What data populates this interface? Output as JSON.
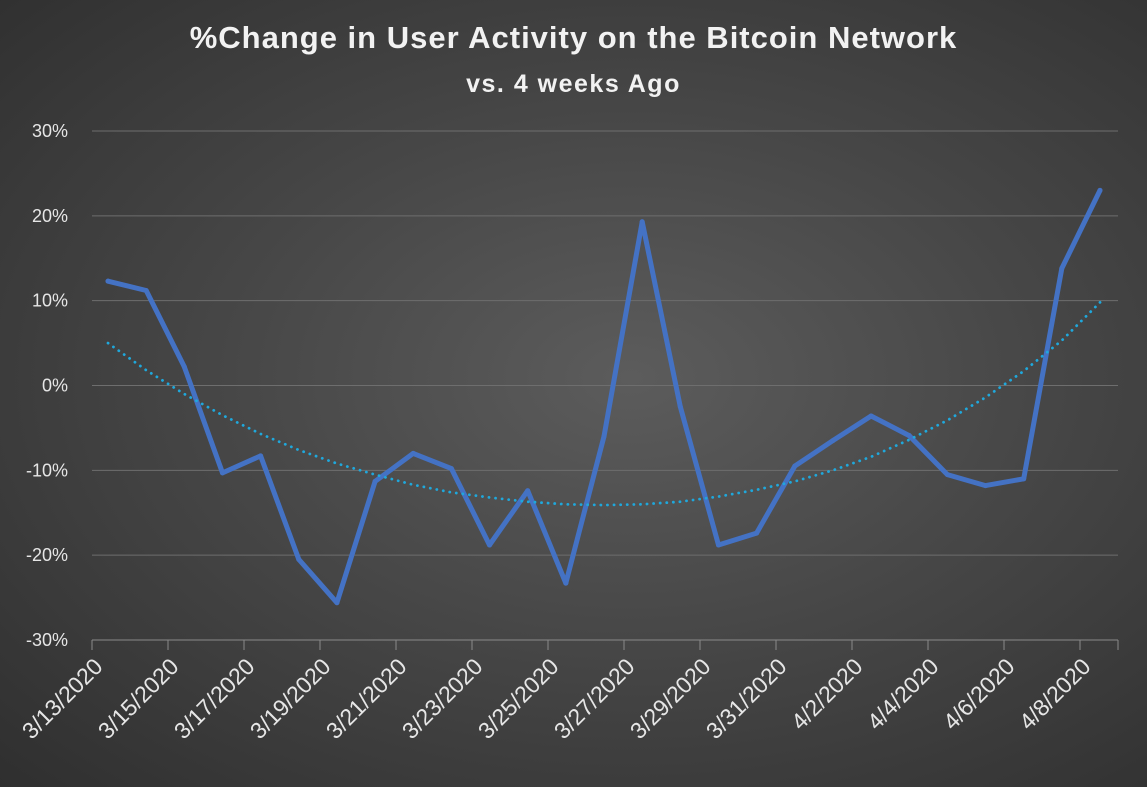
{
  "chart_data": {
    "type": "line",
    "title": "%Change in User Activity on the Bitcoin Network",
    "subtitle": "vs. 4 weeks Ago",
    "xlabel": "",
    "ylabel": "",
    "ylim": [
      -0.3,
      0.3
    ],
    "y_ticks": [
      0.3,
      0.2,
      0.1,
      0.0,
      -0.1,
      -0.2,
      -0.3
    ],
    "y_tick_labels": [
      "30%",
      "20%",
      "10%",
      "0%",
      "-10%",
      "-20%",
      "-30%"
    ],
    "x_tick_labels": [
      "3/13/2020",
      "3/15/2020",
      "3/17/2020",
      "3/19/2020",
      "3/21/2020",
      "3/23/2020",
      "3/25/2020",
      "3/27/2020",
      "3/29/2020",
      "3/31/2020",
      "4/2/2020",
      "4/4/2020",
      "4/6/2020",
      "4/8/2020"
    ],
    "x": [
      "3/13/2020",
      "3/14/2020",
      "3/15/2020",
      "3/16/2020",
      "3/17/2020",
      "3/18/2020",
      "3/19/2020",
      "3/20/2020",
      "3/21/2020",
      "3/22/2020",
      "3/23/2020",
      "3/24/2020",
      "3/25/2020",
      "3/26/2020",
      "3/27/2020",
      "3/28/2020",
      "3/29/2020",
      "3/30/2020",
      "3/31/2020",
      "4/1/2020",
      "4/2/2020",
      "4/3/2020",
      "4/4/2020",
      "4/5/2020",
      "4/6/2020",
      "4/7/2020",
      "4/8/2020"
    ],
    "series": [
      {
        "values": [
          0.123,
          0.112,
          0.022,
          -0.103,
          -0.083,
          -0.205,
          -0.256,
          -0.113,
          -0.08,
          -0.098,
          -0.188,
          -0.124,
          -0.233,
          -0.06,
          0.193,
          -0.025,
          -0.188,
          -0.174,
          -0.095,
          -0.065,
          -0.036,
          -0.059,
          -0.105,
          -0.118,
          -0.11,
          0.138,
          0.23
        ],
        "color": "#4472c4",
        "style": "solid"
      },
      {
        "values": [
          0.05,
          0.018,
          -0.01,
          -0.035,
          -0.057,
          -0.076,
          -0.092,
          -0.105,
          -0.117,
          -0.126,
          -0.132,
          -0.137,
          -0.14,
          -0.141,
          -0.14,
          -0.137,
          -0.131,
          -0.123,
          -0.113,
          -0.1,
          -0.084,
          -0.064,
          -0.041,
          -0.014,
          0.017,
          0.053,
          0.098
        ],
        "color": "#1fa8dc",
        "style": "dotted",
        "role": "trendline"
      }
    ],
    "grid": true,
    "legend": "none"
  }
}
